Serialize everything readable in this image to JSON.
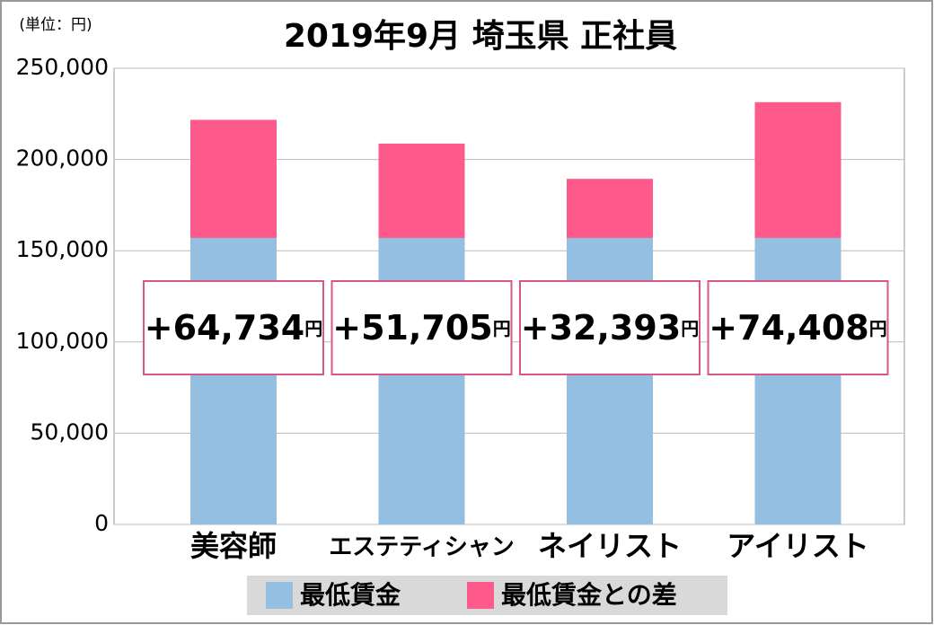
{
  "chart_data": {
    "type": "stacked-bar",
    "title": "2019年9月 埼玉県 正社員",
    "unit_note": "(単位：円)",
    "categories": [
      "美容師",
      "エステティシャン",
      "ネイリスト",
      "アイリスト"
    ],
    "series": [
      {
        "name": "最低賃金",
        "color": "#95bfe0",
        "values": [
          157000,
          157000,
          157000,
          157000
        ]
      },
      {
        "name": "最低賃金との差",
        "color": "#ff5a8c",
        "values": [
          64734,
          51705,
          32393,
          74408
        ],
        "value_labels": [
          "+64,734",
          "+51,705",
          "+32,393",
          "+74,408"
        ],
        "value_label_unit": "円"
      }
    ],
    "ylim": [
      0,
      250000
    ],
    "yticks": [
      0,
      {
        "value": 50000,
        "label": "50,000"
      },
      {
        "value": 100000,
        "label": "100,000"
      },
      {
        "value": 150000,
        "label": "150,000"
      },
      {
        "value": 200000,
        "label": "200,000"
      },
      {
        "value": 250000,
        "label": "250,000"
      }
    ],
    "grid": true
  }
}
